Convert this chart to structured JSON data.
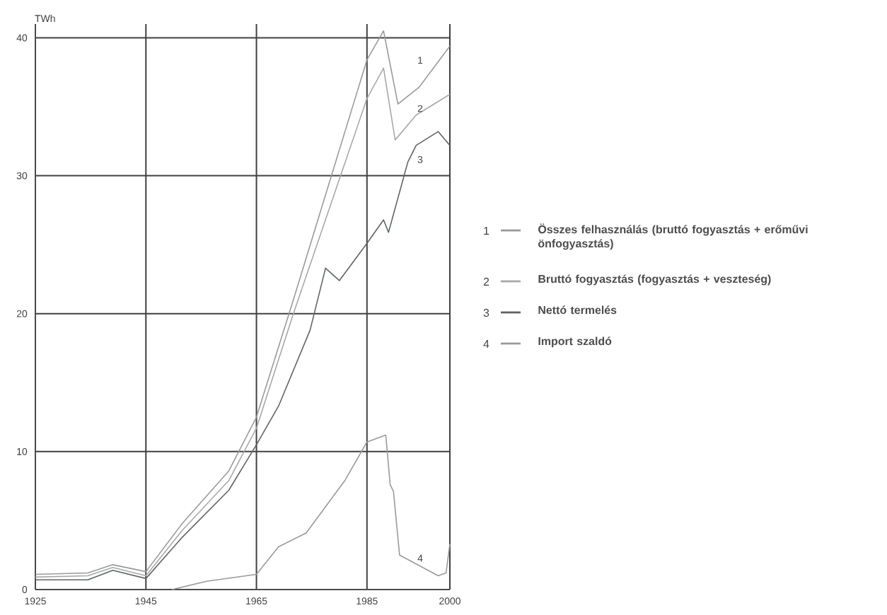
{
  "chart_data": {
    "type": "line",
    "ylabel": "TWh",
    "xlim": [
      1925,
      2000
    ],
    "ylim": [
      0,
      41
    ],
    "xticks": [
      1925,
      1945,
      1965,
      1985,
      2000
    ],
    "yticks": [
      0,
      10,
      20,
      30,
      40
    ],
    "grid": true,
    "legend": "right",
    "line_style": "solid",
    "marker": "none",
    "series": [
      {
        "name": "Összes felhasználás (bruttó fogyasztás + erőművi önfogyasztás)",
        "color": "#9a9a9a",
        "x": [
          1925,
          1934.5,
          1939,
          1945,
          1951.6,
          1960,
          1965,
          1971.6,
          1985,
          1988,
          1990.6,
          1994.4,
          2000
        ],
        "values": [
          1.1,
          1.2,
          1.8,
          1.3,
          4.8,
          8.6,
          12.5,
          20.9,
          38.4,
          40.5,
          35.2,
          36.4,
          39.4
        ]
      },
      {
        "name": "Bruttó fogyasztás (fogyasztás + veszteség)",
        "color": "#a8a8a8",
        "x": [
          1925,
          1934.5,
          1939,
          1945,
          1951.6,
          1960,
          1965,
          1971.6,
          1985,
          1988,
          1990.1,
          1993.9,
          2000
        ],
        "values": [
          0.9,
          1.0,
          1.6,
          1.0,
          4.3,
          7.9,
          11.7,
          19.9,
          35.6,
          37.8,
          32.6,
          34.4,
          35.9
        ]
      },
      {
        "name": "Nettó termelés",
        "color": "#5e665e",
        "x": [
          1925,
          1934.5,
          1939,
          1945,
          1951.6,
          1960,
          1965,
          1969,
          1974.7,
          1977.5,
          1980,
          1985,
          1988,
          1988.9,
          1992.4,
          1993.9,
          1997.9,
          2000
        ],
        "values": [
          0.7,
          0.7,
          1.4,
          0.8,
          3.8,
          7.2,
          10.5,
          13.3,
          18.8,
          23.3,
          22.4,
          25.1,
          26.8,
          25.9,
          31.0,
          32.2,
          33.2,
          32.2
        ]
      },
      {
        "name": "Import szaldó",
        "color": "#9a9a9a",
        "x": [
          1949.7,
          1956,
          1965,
          1969,
          1974,
          1981,
          1985,
          1988.4,
          1989.2,
          1989.8,
          1990.9,
          1997.9,
          1999.3,
          2000
        ],
        "values": [
          0,
          0.6,
          1.1,
          3.1,
          4.1,
          7.9,
          10.7,
          11.2,
          7.6,
          7.1,
          2.5,
          1.0,
          1.2,
          3.3
        ]
      }
    ],
    "annotations": [
      "1",
      "2",
      "3",
      "4"
    ]
  }
}
